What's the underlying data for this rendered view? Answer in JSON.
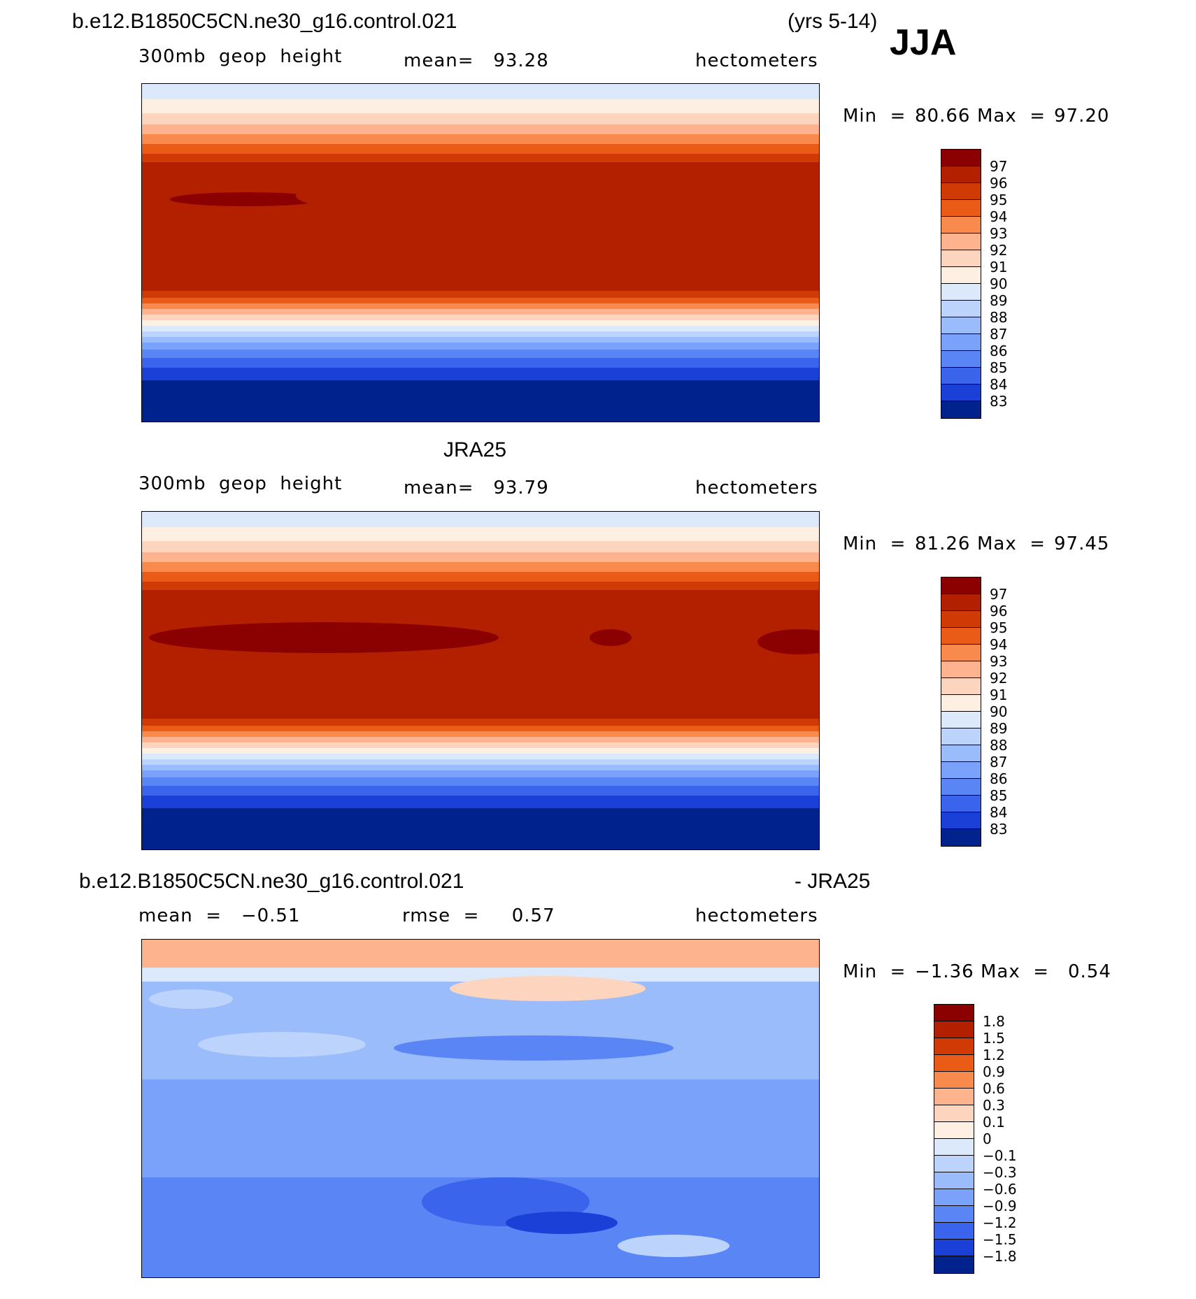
{
  "header": {
    "case_name": "b.e12.B1850C5CN.ne30_g16.control.021",
    "years": "(yrs 5-14)",
    "season": "JJA"
  },
  "panels": [
    {
      "title": "",
      "variable": "300mb  geop  height",
      "mean_text": "mean=   93.28",
      "units": "hectometers",
      "min_label": "Min  =",
      "min_value": "80.66",
      "max_label": "Max  =",
      "max_value": "97.20",
      "colorbar_labels": [
        "97",
        "96",
        "95",
        "94",
        "93",
        "92",
        "91",
        "90",
        "89",
        "88",
        "87",
        "86",
        "85",
        "84",
        "83"
      ]
    },
    {
      "title": "JRA25",
      "variable": "300mb  geop  height",
      "mean_text": "mean=   93.79",
      "units": "hectometers",
      "min_label": "Min  =",
      "min_value": "81.26",
      "max_label": "Max  =",
      "max_value": "97.45",
      "colorbar_labels": [
        "97",
        "96",
        "95",
        "94",
        "93",
        "92",
        "91",
        "90",
        "89",
        "88",
        "87",
        "86",
        "85",
        "84",
        "83"
      ]
    },
    {
      "title_left": "b.e12.B1850C5CN.ne30_g16.control.021",
      "title_right": "- JRA25",
      "mean_text": "mean  =   −0.51",
      "rmse_text": "rmse  =     0.57",
      "units": "hectometers",
      "min_label": "Min  =",
      "min_value": "−1.36",
      "max_label": "Max  =",
      "max_value": "0.54",
      "colorbar_labels": [
        "1.8",
        "1.5",
        "1.2",
        "0.9",
        "0.6",
        "0.3",
        "0.1",
        "0",
        "−0.1",
        "−0.3",
        "−0.6",
        "−0.9",
        "−1.2",
        "−1.5",
        "−1.8"
      ]
    }
  ],
  "colors": {
    "abs_scale": [
      "#8b0000",
      "#b22000",
      "#d03a04",
      "#ea5b18",
      "#f98a4d",
      "#fdb48e",
      "#fdd5be",
      "#fdf0e2",
      "#dbe9fb",
      "#bcd3fb",
      "#9abcfb",
      "#7aa2fb",
      "#5a85f5",
      "#3a64ec",
      "#1a40d8",
      "#00228c"
    ],
    "diff_scale": [
      "#8b0000",
      "#b22000",
      "#d03a04",
      "#ea5b18",
      "#f98a4d",
      "#fdb48e",
      "#fdd5be",
      "#fdf0e2",
      "#dbe9fb",
      "#bcd3fb",
      "#9abcfb",
      "#7aa2fb",
      "#5a85f5",
      "#3a64ec",
      "#1a40d8",
      "#00228c"
    ]
  }
}
